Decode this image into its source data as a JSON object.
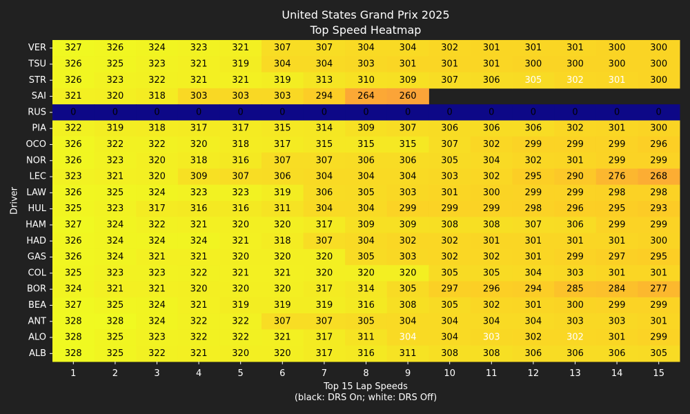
{
  "chart_data": {
    "type": "heatmap",
    "title": [
      "United States Grand Prix 2025",
      "Top Speed Heatmap"
    ],
    "xlabel": [
      "Top 15 Lap Speeds",
      "(black: DRS On; white: DRS Off)"
    ],
    "ylabel": "Driver",
    "x": [
      "1",
      "2",
      "3",
      "4",
      "5",
      "6",
      "7",
      "8",
      "9",
      "10",
      "11",
      "12",
      "13",
      "14",
      "15"
    ],
    "y": [
      "VER",
      "TSU",
      "STR",
      "SAI",
      "RUS",
      "PIA",
      "OCO",
      "NOR",
      "LEC",
      "LAW",
      "HUL",
      "HAM",
      "HAD",
      "GAS",
      "COL",
      "BOR",
      "BEA",
      "ANT",
      "ALO",
      "ALB"
    ],
    "colormap": "plasma",
    "value_range": [
      0,
      328
    ],
    "background": "#212121",
    "label_color_drs_on": "#000000",
    "label_color_drs_off": "#ffffff",
    "values": [
      [
        327,
        326,
        324,
        323,
        321,
        307,
        307,
        304,
        304,
        302,
        301,
        301,
        301,
        300,
        300
      ],
      [
        326,
        325,
        323,
        321,
        319,
        304,
        304,
        303,
        301,
        301,
        301,
        300,
        300,
        300,
        300
      ],
      [
        326,
        323,
        322,
        321,
        321,
        319,
        313,
        310,
        309,
        307,
        306,
        305,
        302,
        301,
        300
      ],
      [
        321,
        320,
        318,
        303,
        303,
        303,
        294,
        264,
        260,
        null,
        null,
        null,
        null,
        null,
        null
      ],
      [
        0,
        0,
        0,
        0,
        0,
        0,
        0,
        0,
        0,
        0,
        0,
        0,
        0,
        0,
        0
      ],
      [
        322,
        319,
        318,
        317,
        317,
        315,
        314,
        309,
        307,
        306,
        306,
        306,
        302,
        301,
        300
      ],
      [
        326,
        322,
        322,
        320,
        318,
        317,
        315,
        315,
        315,
        307,
        302,
        299,
        299,
        299,
        296
      ],
      [
        326,
        323,
        320,
        318,
        316,
        307,
        307,
        306,
        306,
        305,
        304,
        302,
        301,
        299,
        299
      ],
      [
        323,
        321,
        320,
        309,
        307,
        306,
        304,
        304,
        304,
        303,
        302,
        295,
        290,
        276,
        268
      ],
      [
        326,
        325,
        324,
        323,
        323,
        319,
        306,
        305,
        303,
        301,
        300,
        299,
        299,
        298,
        298
      ],
      [
        325,
        323,
        317,
        316,
        316,
        311,
        304,
        304,
        299,
        299,
        299,
        298,
        296,
        295,
        293
      ],
      [
        327,
        324,
        322,
        321,
        320,
        320,
        317,
        309,
        309,
        308,
        308,
        307,
        306,
        299,
        299
      ],
      [
        326,
        324,
        324,
        324,
        321,
        318,
        307,
        304,
        302,
        302,
        301,
        301,
        301,
        301,
        300
      ],
      [
        326,
        324,
        321,
        321,
        320,
        320,
        320,
        305,
        303,
        302,
        302,
        301,
        299,
        297,
        295
      ],
      [
        325,
        323,
        323,
        322,
        321,
        321,
        320,
        320,
        320,
        305,
        305,
        304,
        303,
        301,
        301
      ],
      [
        324,
        321,
        321,
        320,
        320,
        320,
        317,
        314,
        305,
        297,
        296,
        294,
        285,
        284,
        277
      ],
      [
        327,
        325,
        324,
        321,
        319,
        319,
        319,
        316,
        308,
        305,
        302,
        301,
        300,
        299,
        299
      ],
      [
        328,
        328,
        324,
        322,
        322,
        307,
        307,
        305,
        304,
        304,
        304,
        304,
        303,
        303,
        301
      ],
      [
        328,
        325,
        323,
        322,
        322,
        321,
        317,
        311,
        304,
        304,
        303,
        302,
        302,
        301,
        299
      ],
      [
        328,
        325,
        322,
        321,
        320,
        320,
        317,
        316,
        311,
        308,
        308,
        306,
        306,
        306,
        305
      ]
    ],
    "drs_off": [
      [
        2,
        11
      ],
      [
        2,
        12
      ],
      [
        2,
        13
      ],
      [
        18,
        8
      ],
      [
        18,
        10
      ],
      [
        18,
        12
      ]
    ]
  }
}
